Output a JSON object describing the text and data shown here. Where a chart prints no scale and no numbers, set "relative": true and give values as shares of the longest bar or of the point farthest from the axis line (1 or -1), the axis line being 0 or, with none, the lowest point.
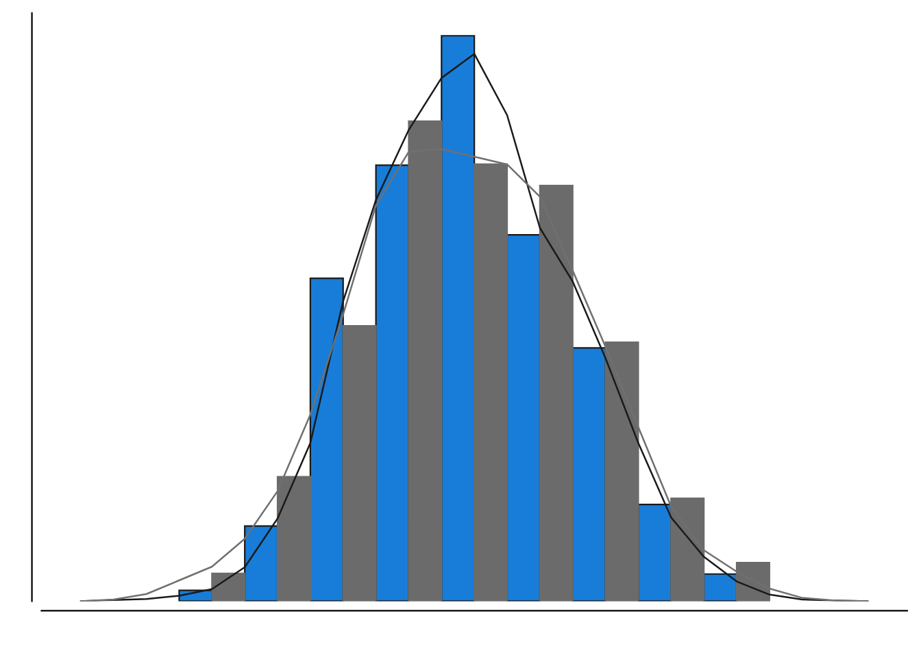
{
  "chart_data": [
    {
      "type": "bar",
      "relative": true,
      "categories": [
        null,
        null,
        null,
        null,
        null,
        null,
        null,
        null,
        null
      ],
      "series": [
        {
          "color": "#187dd8",
          "values": [
            0.019,
            0.133,
            0.571,
            0.771,
            1.0,
            0.648,
            0.448,
            0.171,
            0.048
          ]
        },
        {
          "color": "#6b6b6b",
          "values": [
            0.049,
            0.22,
            0.487,
            0.849,
            0.773,
            0.735,
            0.458,
            0.182,
            0.068
          ]
        }
      ]
    },
    {
      "type": "line",
      "relative": true,
      "categories": [
        null,
        null,
        null,
        null,
        null,
        null,
        null,
        null,
        null,
        null,
        null,
        null,
        null,
        null,
        null,
        null,
        null,
        null,
        null,
        null,
        null,
        null,
        null,
        null,
        null
      ],
      "series": [
        {
          "color": "#1a1a1a",
          "values": [
            0,
            0.002,
            0.004,
            0.01,
            0.022,
            0.062,
            0.151,
            0.289,
            0.548,
            0.733,
            0.861,
            0.956,
            1.0,
            0.888,
            0.682,
            0.584,
            0.444,
            0.289,
            0.153,
            0.081,
            0.036,
            0.012,
            0.003,
            0.001,
            0
          ]
        },
        {
          "color": "#707070",
          "values": [
            0,
            0.003,
            0.013,
            0.038,
            0.063,
            0.114,
            0.201,
            0.341,
            0.524,
            0.723,
            0.821,
            0.826,
            0.812,
            0.798,
            0.739,
            0.604,
            0.465,
            0.318,
            0.173,
            0.093,
            0.054,
            0.023,
            0.006,
            0.001,
            0
          ]
        }
      ]
    }
  ]
}
